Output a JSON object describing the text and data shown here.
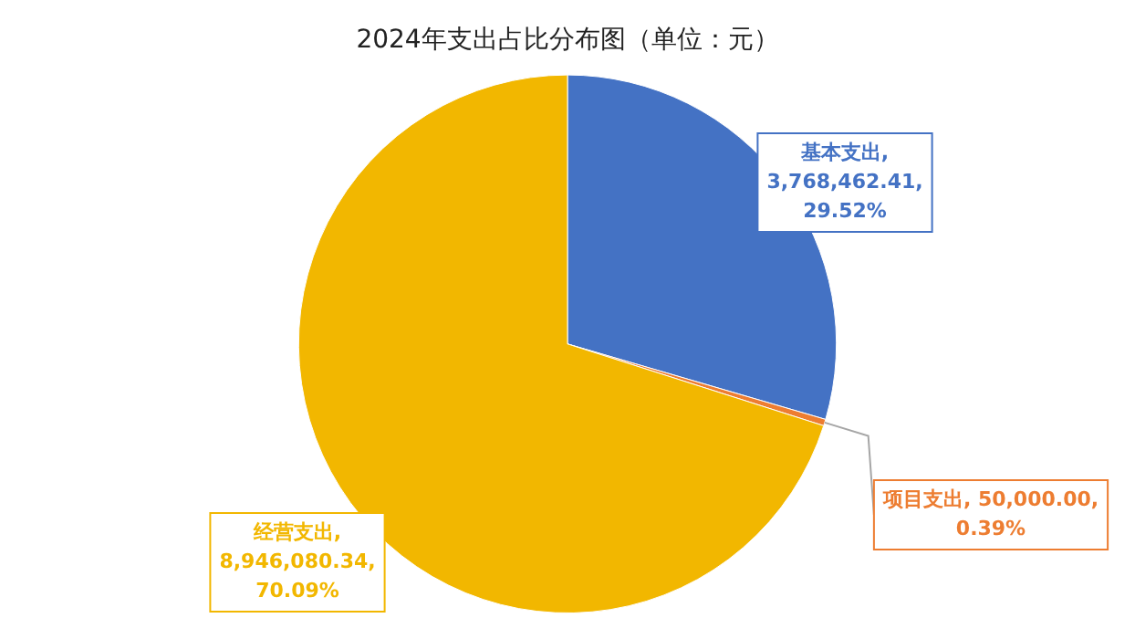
{
  "chart_data": {
    "type": "pie",
    "title": "2024年支出占比分布图（单位：元）",
    "categories": [
      "基本支出",
      "项目支出",
      "经营支出"
    ],
    "values": [
      3768462.41,
      50000.0,
      8946080.34
    ],
    "colors": [
      "#4472c4",
      "#ed7d31",
      "#f2b700"
    ],
    "value_labels": [
      ", 3,768,462.41, 29.52%",
      ", 50,000.00, 0.39%",
      ", 8,946,080.34, 70.09%"
    ],
    "legend": false
  }
}
